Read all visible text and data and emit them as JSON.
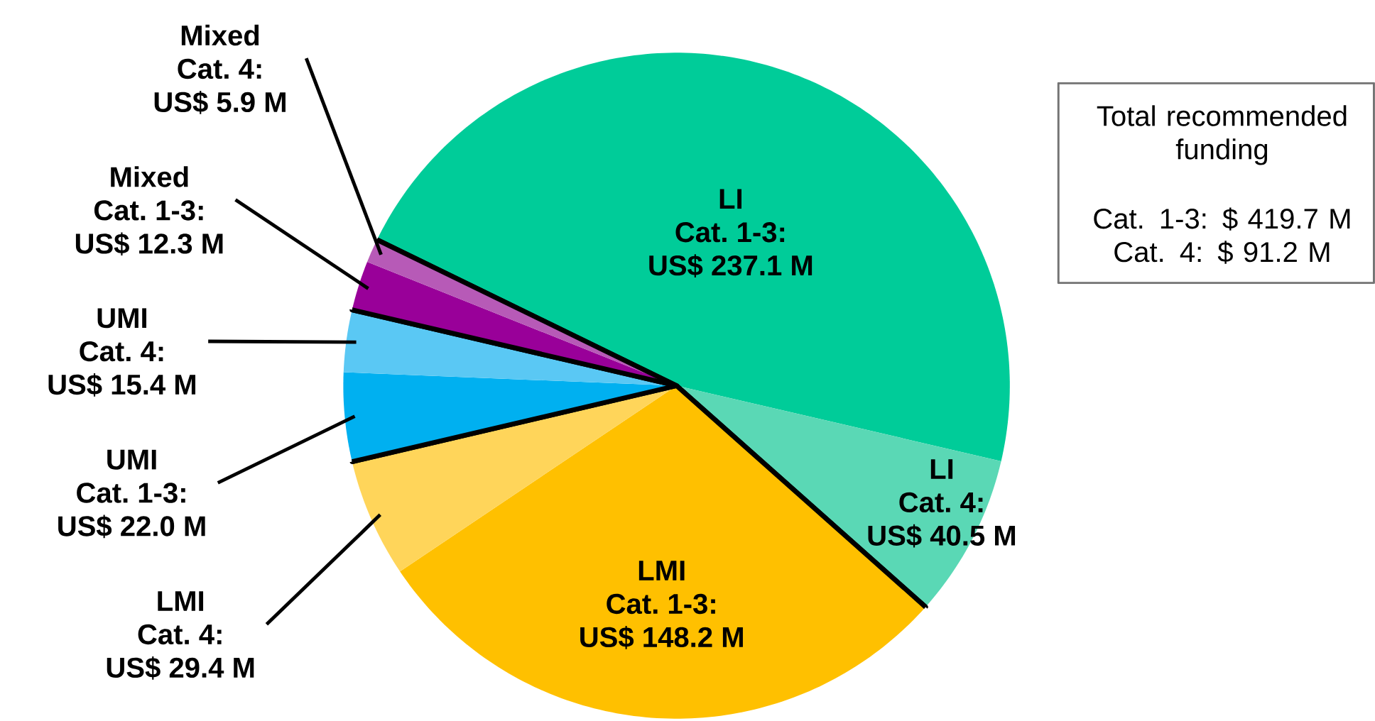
{
  "chart_data": {
    "type": "pie",
    "categories": [
      "LI Cat. 1-3: US$ 237.1 M",
      "LI Cat. 4: US$ 40.5 M",
      "LMI Cat. 1-3: US$ 148.2 M",
      "LMI Cat. 4: US$ 29.4 M",
      "UMI Cat. 1-3: US$ 22.0 M",
      "UMI Cat. 4: US$ 15.4 M",
      "Mixed Cat. 1-3: US$ 12.3 M",
      "Mixed Cat. 4: US$ 5.9 M"
    ],
    "values": [
      237.1,
      40.5,
      148.2,
      29.4,
      22.0,
      15.4,
      12.3,
      5.9
    ],
    "colors": [
      "#00cc99",
      "#5ad8b5",
      "#ffc000",
      "#ffd55a",
      "#00b0f0",
      "#5ac8f4",
      "#990099",
      "#b75ab7"
    ],
    "annotations": [
      "Total recommended funding",
      "Cat. 1-3: $ 419.7 M",
      "Cat. 4: $ 91.2 M"
    ]
  }
}
